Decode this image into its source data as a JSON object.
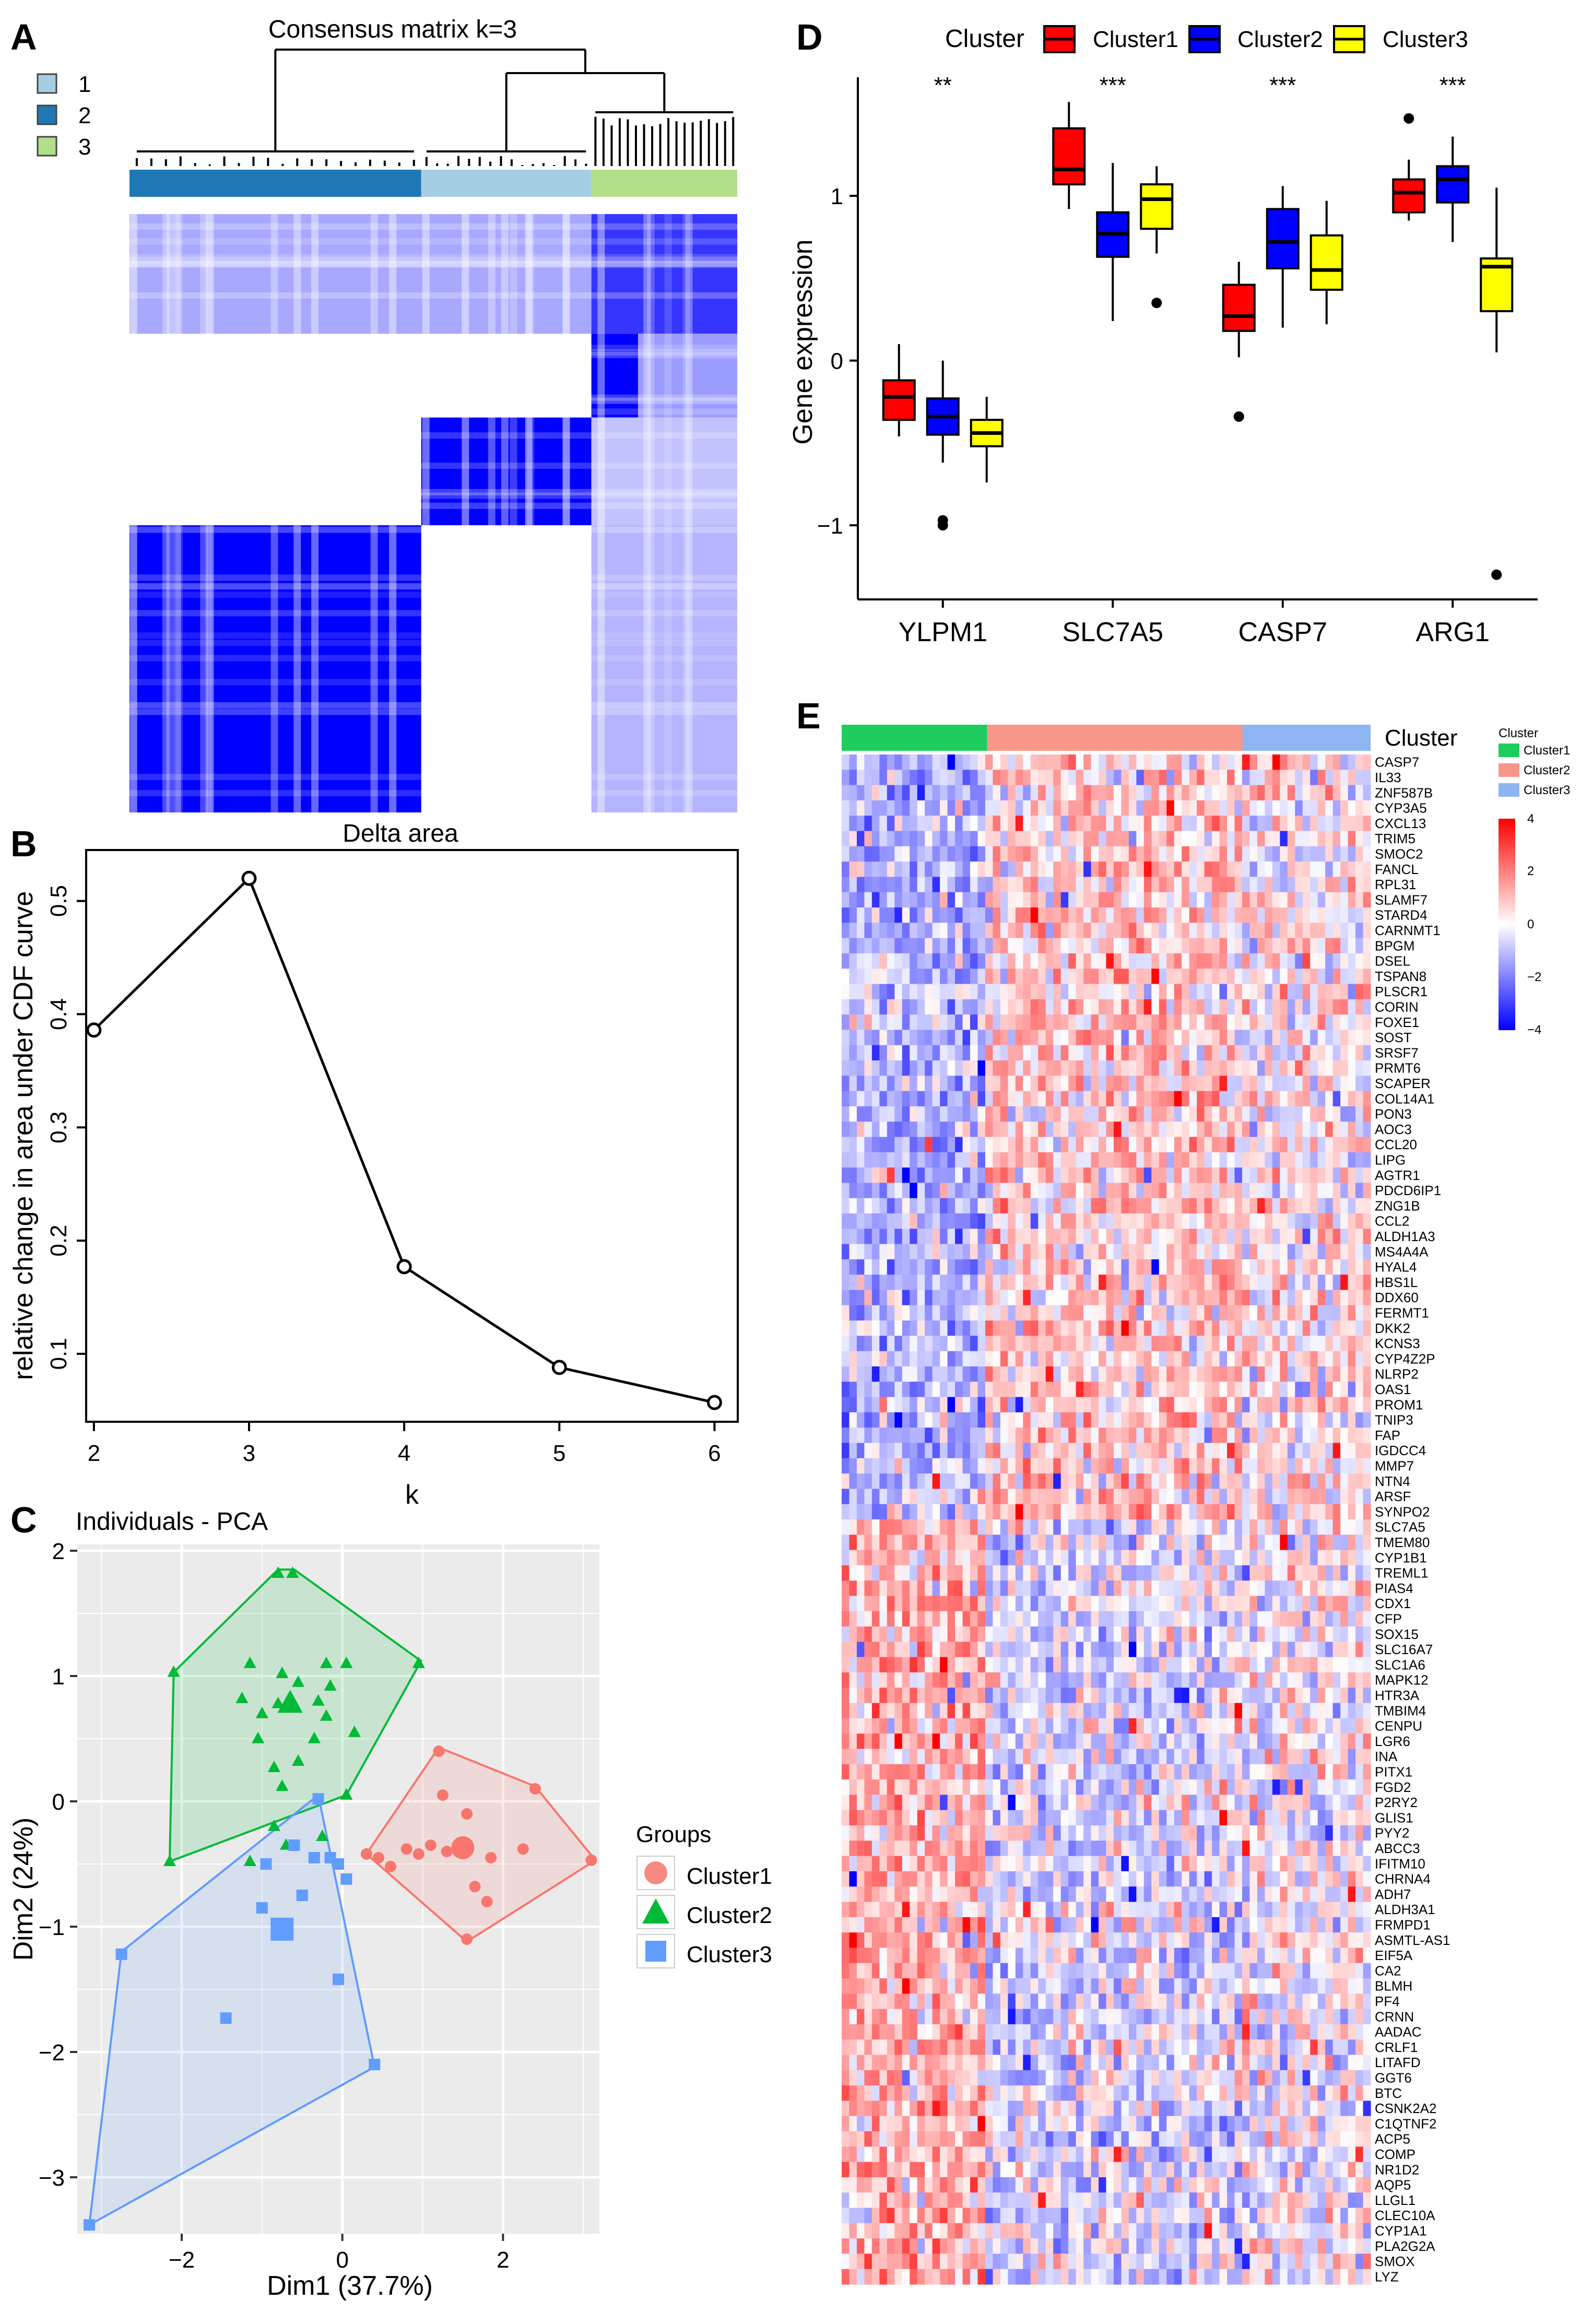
{
  "panels": {
    "A": {
      "letter": "A",
      "title": "Consensus matrix k=3",
      "legend": [
        {
          "label": "1",
          "color": "#a6cee3"
        },
        {
          "label": "2",
          "color": "#1f78b4"
        },
        {
          "label": "3",
          "color": "#b2df8a"
        }
      ],
      "bar_groups": [
        {
          "name": "2",
          "fraction": 0.48,
          "color": "#1f78b4"
        },
        {
          "name": "1",
          "fraction": 0.28,
          "color": "#a6cee3"
        },
        {
          "name": "3",
          "fraction": 0.24,
          "color": "#b2df8a"
        }
      ]
    },
    "B": {
      "letter": "B",
      "title": "Delta area",
      "xlabel": "k",
      "ylabel": "relative change in area under CDF curve"
    },
    "C": {
      "letter": "C",
      "title": "Individuals - PCA",
      "xlabel": "Dim1 (37.7%)",
      "ylabel": "Dim2 (24%)",
      "legend_title": "Groups",
      "groups": [
        {
          "name": "Cluster1",
          "color": "#f8766d",
          "shape": "circle"
        },
        {
          "name": "Cluster2",
          "color": "#00ba38",
          "shape": "triangle"
        },
        {
          "name": "Cluster3",
          "color": "#619cff",
          "shape": "square"
        }
      ]
    },
    "D": {
      "letter": "D",
      "legend_title": "Cluster",
      "ylabel": "Gene expression",
      "groups": [
        {
          "name": "Cluster1",
          "color": "#ff0000"
        },
        {
          "name": "Cluster2",
          "color": "#0000ff"
        },
        {
          "name": "Cluster3",
          "color": "#ffff00"
        }
      ]
    },
    "E": {
      "letter": "E",
      "annotation_label": "Cluster",
      "legend_title": "Cluster",
      "groups": [
        {
          "name": "Cluster1",
          "color": "#1dce5e",
          "fraction": 0.275
        },
        {
          "name": "Cluster2",
          "color": "#f8968a",
          "fraction": 0.483
        },
        {
          "name": "Cluster3",
          "color": "#8db5f2",
          "fraction": 0.242
        }
      ],
      "scale_ticks": [
        "4",
        "2",
        "0",
        "−2",
        "−4"
      ],
      "colors": {
        "high": "#ff0000",
        "mid": "#ffffff",
        "low": "#0000ff"
      }
    }
  },
  "chart_data": [
    {
      "id": "A",
      "type": "heatmap",
      "title": "Consensus matrix k=3",
      "clusters": [
        "1",
        "2",
        "3"
      ],
      "cluster_sizes": [
        20,
        34,
        17
      ]
    },
    {
      "id": "B",
      "type": "line",
      "title": "Delta area",
      "xlabel": "k",
      "ylabel": "relative change in area under CDF curve",
      "x": [
        2,
        3,
        4,
        5,
        6
      ],
      "y": [
        0.386,
        0.52,
        0.177,
        0.088,
        0.057
      ],
      "xticks": [
        2,
        3,
        4,
        5,
        6
      ],
      "yticks": [
        0.1,
        0.2,
        0.3,
        0.4,
        0.5
      ],
      "xlim": [
        1.95,
        6.15
      ],
      "ylim": [
        0.04,
        0.545
      ]
    },
    {
      "id": "C",
      "type": "scatter",
      "title": "Individuals - PCA",
      "xlabel": "Dim1 (37.7%)",
      "ylabel": "Dim2 (24%)",
      "xlim": [
        -3.3,
        3.2
      ],
      "ylim": [
        -3.45,
        2.05
      ],
      "xticks": [
        -2,
        0,
        2
      ],
      "yticks": [
        -3,
        -2,
        -1,
        0,
        1,
        2
      ],
      "series": [
        {
          "name": "Cluster1",
          "points": [
            [
              0.3,
              -0.42
            ],
            [
              0.45,
              -0.45
            ],
            [
              0.6,
              -0.52
            ],
            [
              0.8,
              -0.38
            ],
            [
              0.95,
              -0.42
            ],
            [
              1.1,
              -0.35
            ],
            [
              1.3,
              -0.4
            ],
            [
              1.55,
              -0.1
            ],
            [
              1.25,
              0.05
            ],
            [
              1.2,
              0.4
            ],
            [
              2.4,
              0.1
            ],
            [
              3.1,
              -0.47
            ],
            [
              1.85,
              -0.45
            ],
            [
              1.8,
              -0.8
            ],
            [
              1.55,
              -1.1
            ],
            [
              1.65,
              -0.68
            ],
            [
              2.25,
              -0.38
            ]
          ],
          "centroid": [
            1.5,
            -0.37
          ],
          "hull": [
            [
              1.2,
              0.43
            ],
            [
              2.4,
              0.12
            ],
            [
              3.15,
              -0.47
            ],
            [
              1.55,
              -1.12
            ],
            [
              0.3,
              -0.42
            ]
          ]
        },
        {
          "name": "Cluster2",
          "points": [
            [
              -0.8,
              1.82
            ],
            [
              -0.62,
              1.82
            ],
            [
              -2.1,
              1.03
            ],
            [
              0.95,
              1.1
            ],
            [
              -1.15,
              1.1
            ],
            [
              -0.75,
              1.02
            ],
            [
              -0.2,
              1.1
            ],
            [
              0.05,
              1.1
            ],
            [
              -0.55,
              0.95
            ],
            [
              -1.0,
              0.7
            ],
            [
              -0.15,
              0.92
            ],
            [
              -0.3,
              0.8
            ],
            [
              -1.25,
              0.82
            ],
            [
              -0.8,
              0.78
            ],
            [
              -0.2,
              0.68
            ],
            [
              -1.05,
              0.5
            ],
            [
              -0.35,
              0.5
            ],
            [
              -0.85,
              0.27
            ],
            [
              -0.55,
              0.32
            ],
            [
              0.15,
              0.55
            ],
            [
              -0.75,
              0.12
            ],
            [
              -0.85,
              -0.2
            ],
            [
              0.05,
              0.05
            ],
            [
              -1.15,
              -0.48
            ],
            [
              -0.7,
              -0.35
            ],
            [
              -2.15,
              -0.48
            ],
            [
              -0.25,
              -0.28
            ],
            [
              -0.65,
              0.76
            ]
          ],
          "centroid": [
            -0.65,
            0.78
          ],
          "hull": [
            [
              -0.8,
              1.85
            ],
            [
              -0.6,
              1.85
            ],
            [
              0.98,
              1.12
            ],
            [
              0.05,
              0.05
            ],
            [
              -2.15,
              -0.48
            ],
            [
              -2.1,
              1.03
            ]
          ]
        },
        {
          "name": "Cluster3",
          "points": [
            [
              -0.3,
              0.02
            ],
            [
              -0.6,
              -0.35
            ],
            [
              -0.35,
              -0.45
            ],
            [
              -0.15,
              -0.45
            ],
            [
              -0.05,
              -0.5
            ],
            [
              0.05,
              -0.62
            ],
            [
              -0.5,
              -0.75
            ],
            [
              -0.95,
              -0.5
            ],
            [
              -1.0,
              -0.85
            ],
            [
              -1.45,
              -1.73
            ],
            [
              -0.05,
              -1.42
            ],
            [
              0.4,
              -2.1
            ],
            [
              -2.75,
              -1.22
            ],
            [
              -3.15,
              -3.38
            ]
          ],
          "centroid": [
            -0.75,
            -1.02
          ],
          "hull": [
            [
              -0.3,
              0.05
            ],
            [
              0.4,
              -2.12
            ],
            [
              -3.15,
              -3.38
            ],
            [
              -2.75,
              -1.2
            ]
          ]
        }
      ]
    },
    {
      "id": "D",
      "type": "boxplot",
      "ylabel": "Gene expression",
      "categories": [
        "YLPM1",
        "SLC7A5",
        "CASP7",
        "ARG1"
      ],
      "significance": [
        "**",
        "***",
        "***",
        "***"
      ],
      "ylim": [
        -1.45,
        1.72
      ],
      "yticks": [
        -1,
        0,
        1
      ],
      "series": [
        {
          "name": "Cluster1",
          "boxes": [
            {
              "min": -0.46,
              "q1": -0.36,
              "median": -0.22,
              "q3": -0.12,
              "max": 0.1,
              "outliers": []
            },
            {
              "min": 0.92,
              "q1": 1.07,
              "median": 1.16,
              "q3": 1.41,
              "max": 1.57,
              "outliers": []
            },
            {
              "min": 0.02,
              "q1": 0.18,
              "median": 0.27,
              "q3": 0.46,
              "max": 0.6,
              "outliers": [
                -0.34
              ]
            },
            {
              "min": 0.85,
              "q1": 0.9,
              "median": 1.02,
              "q3": 1.1,
              "max": 1.22,
              "outliers": [
                1.47
              ]
            }
          ]
        },
        {
          "name": "Cluster2",
          "boxes": [
            {
              "min": -0.62,
              "q1": -0.45,
              "median": -0.34,
              "q3": -0.23,
              "max": 0.0,
              "outliers": [
                -0.97,
                -1.0
              ]
            },
            {
              "min": 0.24,
              "q1": 0.63,
              "median": 0.77,
              "q3": 0.9,
              "max": 1.2,
              "outliers": []
            },
            {
              "min": 0.2,
              "q1": 0.56,
              "median": 0.72,
              "q3": 0.92,
              "max": 1.06,
              "outliers": []
            },
            {
              "min": 0.72,
              "q1": 0.96,
              "median": 1.1,
              "q3": 1.18,
              "max": 1.36,
              "outliers": []
            }
          ]
        },
        {
          "name": "Cluster3",
          "boxes": [
            {
              "min": -0.74,
              "q1": -0.52,
              "median": -0.44,
              "q3": -0.36,
              "max": -0.22,
              "outliers": []
            },
            {
              "min": 0.65,
              "q1": 0.8,
              "median": 0.98,
              "q3": 1.07,
              "max": 1.18,
              "outliers": [
                0.35
              ]
            },
            {
              "min": 0.22,
              "q1": 0.43,
              "median": 0.55,
              "q3": 0.76,
              "max": 0.97,
              "outliers": []
            },
            {
              "min": 0.05,
              "q1": 0.3,
              "median": 0.57,
              "q3": 0.62,
              "max": 1.05,
              "outliers": [
                -1.3
              ]
            }
          ]
        }
      ]
    },
    {
      "id": "E",
      "type": "heatmap",
      "annotation": "Cluster",
      "color_range": [
        -4,
        4
      ],
      "genes": [
        "CASP7",
        "IL33",
        "ZNF587B",
        "CYP3A5",
        "CXCL13",
        "TRIM5",
        "SMOC2",
        "FANCL",
        "RPL31",
        "SLAMF7",
        "STARD4",
        "CARNMT1",
        "BPGM",
        "DSEL",
        "TSPAN8",
        "PLSCR1",
        "CORIN",
        "FOXE1",
        "SOST",
        "SRSF7",
        "PRMT6",
        "SCAPER",
        "COL14A1",
        "PON3",
        "AOC3",
        "CCL20",
        "LIPG",
        "AGTR1",
        "PDCD6IP1",
        "ZNG1B",
        "CCL2",
        "ALDH1A3",
        "MS4A4A",
        "HYAL4",
        "HBS1L",
        "DDX60",
        "FERMT1",
        "DKK2",
        "KCNS3",
        "CYP4Z2P",
        "NLRP2",
        "OAS1",
        "PROM1",
        "TNIP3",
        "FAP",
        "IGDCC4",
        "MMP7",
        "NTN4",
        "ARSF",
        "SYNPO2",
        "SLC7A5",
        "TMEM80",
        "CYP1B1",
        "TREML1",
        "PIAS4",
        "CDX1",
        "CFP",
        "SOX15",
        "SLC16A7",
        "SLC1A6",
        "MAPK12",
        "HTR3A",
        "TMBIM4",
        "CENPU",
        "LGR6",
        "INA",
        "PITX1",
        "FGD2",
        "P2RY2",
        "GLIS1",
        "PYY2",
        "ABCC3",
        "IFITM10",
        "CHRNA4",
        "ADH7",
        "ALDH3A1",
        "FRMPD1",
        "ASMTL-AS1",
        "EIF5A",
        "CA2",
        "BLMH",
        "PF4",
        "CRNN",
        "AADAC",
        "CRLF1",
        "LITAFD",
        "GGT6",
        "BTC",
        "CSNK2A2",
        "C1QTNF2",
        "ACP5",
        "COMP",
        "NR1D2",
        "AQP5",
        "LLGL1",
        "CLEC10A",
        "CYP1A1",
        "PLA2G2A",
        "SMOX",
        "LYZ"
      ]
    }
  ]
}
